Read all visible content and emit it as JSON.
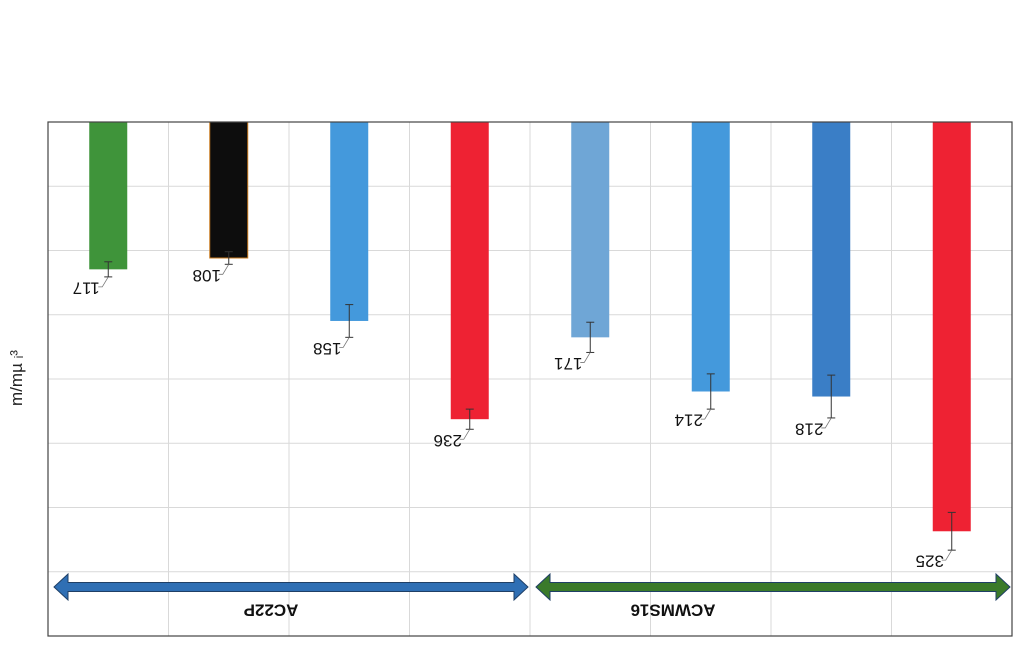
{
  "chart_data": {
    "type": "bar",
    "orientation": "inverted",
    "ylabel": "m/mµ ᵢ³",
    "ylim": [
      0,
      400
    ],
    "grid": true,
    "categories": [
      "",
      "",
      "",
      "",
      "",
      "",
      "",
      ""
    ],
    "values": [
      117,
      108,
      158,
      236,
      171,
      214,
      218,
      325
    ],
    "value_labels": [
      "117",
      "108",
      "158",
      "236",
      "171",
      "214",
      "218",
      "325"
    ],
    "errors": [
      6,
      5,
      13,
      8,
      12,
      14,
      17,
      15
    ],
    "colors": [
      "#3f943a",
      "#0d0d0d",
      "#4499dc",
      "#ee2233",
      "#6fa6d6",
      "#4499dc",
      "#3a7ec6",
      "#ee2233"
    ],
    "groups": [
      {
        "label": "AC22P",
        "start": 0,
        "end": 3,
        "color": "#2f6fb4"
      },
      {
        "label": "ACWMS16",
        "start": 4,
        "end": 7,
        "color": "#3a7a2a"
      }
    ]
  }
}
